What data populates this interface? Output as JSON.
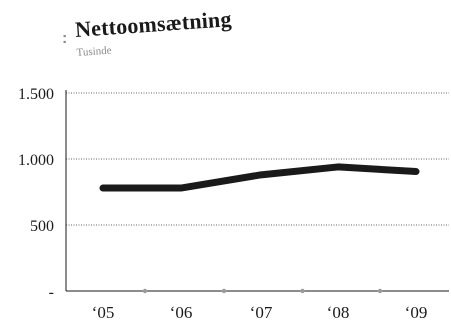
{
  "chart_data": {
    "type": "line",
    "title": "Nettoomsætning",
    "subtitle": "Tusinde",
    "categories": [
      "'05",
      "'06",
      "'07",
      "'08",
      "'09"
    ],
    "series": [
      {
        "values": [
          780,
          780,
          880,
          940,
          905
        ]
      }
    ],
    "y_tick_labels": [
      "-",
      "500",
      "1.000",
      "1.500"
    ],
    "y_tick_values": [
      0,
      500,
      1000,
      1500
    ],
    "ylim": [
      0,
      1500
    ],
    "grid": "horizontal-dotted",
    "colors": {
      "line": "#1a1a1a",
      "grid": "#666666",
      "axis": "#1a1a1a",
      "marker": "#9a9a9a",
      "title_dots": "#8a8a8a"
    }
  }
}
